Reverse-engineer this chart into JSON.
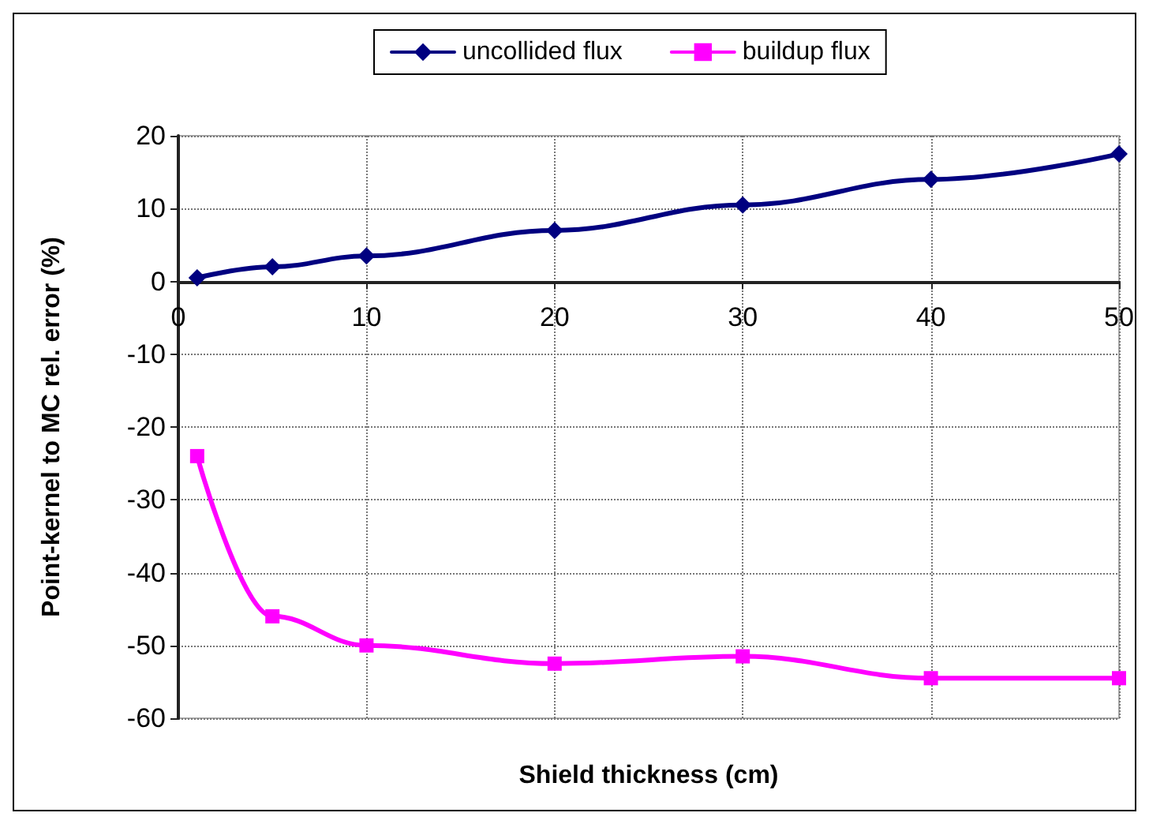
{
  "chart_data": {
    "type": "line",
    "xlabel": "Shield thickness (cm)",
    "ylabel": "Point-kernel to MC rel. error (%)",
    "x": [
      1,
      5,
      10,
      20,
      30,
      40,
      50
    ],
    "series": [
      {
        "name": "uncollided flux",
        "color": "#000080",
        "marker": "diamond",
        "values": [
          0.5,
          2,
          3.5,
          7,
          10.5,
          14,
          17.5
        ]
      },
      {
        "name": "buildup flux",
        "color": "#ff00ff",
        "marker": "square",
        "values": [
          -24,
          -46,
          -50,
          -52.5,
          -51.5,
          -54.5,
          -54.5
        ]
      }
    ],
    "xlim": [
      0,
      50
    ],
    "xticks": [
      0,
      10,
      20,
      30,
      40,
      50
    ],
    "ylim": [
      -60,
      20
    ],
    "yticks": [
      -60,
      -50,
      -40,
      -30,
      -20,
      -10,
      0,
      10,
      20
    ],
    "grid": true,
    "legend": "top",
    "line_style": "solid"
  }
}
